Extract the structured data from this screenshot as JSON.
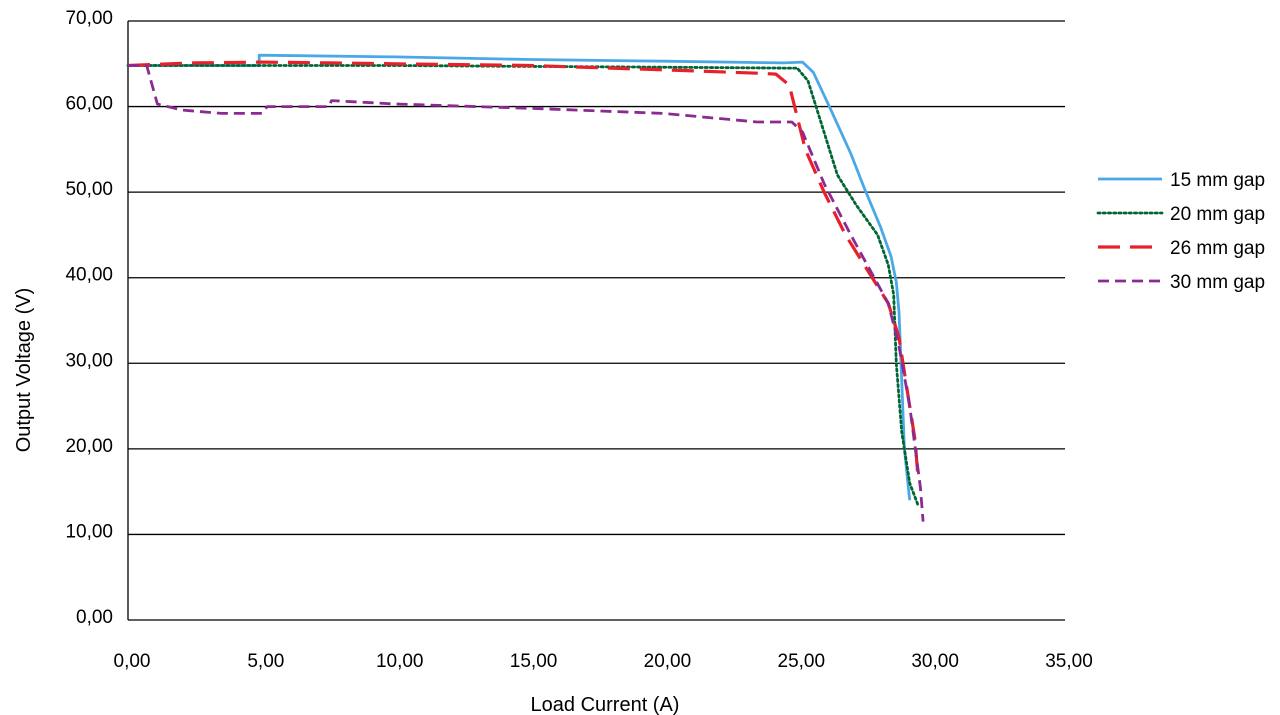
{
  "chart_data": {
    "type": "line",
    "title": "",
    "xlabel": "Load Current (A)",
    "ylabel": "Output Voltage (V)",
    "xlim": [
      0,
      35
    ],
    "ylim": [
      0,
      70
    ],
    "x_ticks": [
      "0,00",
      "5,00",
      "10,00",
      "15,00",
      "20,00",
      "25,00",
      "30,00",
      "35,00"
    ],
    "y_ticks": [
      "0,00",
      "10,00",
      "20,00",
      "30,00",
      "40,00",
      "50,00",
      "60,00",
      "70,00"
    ],
    "grid": "horizontal",
    "legend_position": "right",
    "series": [
      {
        "name": "15 mm gap",
        "color": "#4aa8e6",
        "style": "solid",
        "points": [
          [
            0,
            64.8
          ],
          [
            4.9,
            64.8
          ],
          [
            4.9,
            66.0
          ],
          [
            10,
            65.8
          ],
          [
            15,
            65.5
          ],
          [
            20,
            65.3
          ],
          [
            24.5,
            65.1
          ],
          [
            25.2,
            65.2
          ],
          [
            25.6,
            64.0
          ],
          [
            26.2,
            60.0
          ],
          [
            27,
            54.5
          ],
          [
            27.5,
            50.5
          ],
          [
            28.1,
            46.0
          ],
          [
            28.5,
            42.5
          ],
          [
            28.7,
            39.5
          ],
          [
            28.8,
            36.0
          ],
          [
            28.9,
            28.0
          ],
          [
            29.0,
            20.0
          ],
          [
            29.2,
            14.0
          ]
        ]
      },
      {
        "name": "20 mm gap",
        "color": "#006633",
        "style": "dotted",
        "points": [
          [
            0,
            64.8
          ],
          [
            5,
            64.8
          ],
          [
            10,
            64.8
          ],
          [
            15,
            64.7
          ],
          [
            20,
            64.6
          ],
          [
            24.5,
            64.5
          ],
          [
            25.0,
            64.5
          ],
          [
            25.4,
            63.0
          ],
          [
            25.9,
            58.0
          ],
          [
            26.5,
            52.0
          ],
          [
            27.2,
            48.5
          ],
          [
            28.0,
            45.0
          ],
          [
            28.4,
            41.5
          ],
          [
            28.6,
            38.0
          ],
          [
            28.7,
            30.0
          ],
          [
            28.9,
            22.0
          ],
          [
            29.2,
            16.0
          ],
          [
            29.5,
            13.5
          ]
        ]
      },
      {
        "name": "26 mm gap",
        "color": "#e8202a",
        "style": "dashed",
        "points": [
          [
            0,
            64.8
          ],
          [
            2.5,
            65.1
          ],
          [
            5,
            65.2
          ],
          [
            7.5,
            65.1
          ],
          [
            10,
            65.0
          ],
          [
            15,
            64.8
          ],
          [
            20,
            64.3
          ],
          [
            23.5,
            63.9
          ],
          [
            24.2,
            63.8
          ],
          [
            24.7,
            62.5
          ],
          [
            25.3,
            55.0
          ],
          [
            26,
            50.0
          ],
          [
            26.8,
            45.0
          ],
          [
            27.5,
            41.5
          ],
          [
            28.4,
            37.0
          ],
          [
            28.8,
            33.0
          ],
          [
            29.1,
            27.0
          ],
          [
            29.4,
            21.0
          ],
          [
            29.5,
            17.0
          ]
        ]
      },
      {
        "name": "30 mm gap",
        "color": "#8b2a92",
        "style": "dashed-short",
        "points": [
          [
            0,
            64.8
          ],
          [
            0.7,
            64.8
          ],
          [
            1.1,
            60.3
          ],
          [
            2,
            59.6
          ],
          [
            3.5,
            59.2
          ],
          [
            5,
            59.2
          ],
          [
            5.2,
            60.0
          ],
          [
            7.5,
            60.0
          ],
          [
            7.6,
            60.7
          ],
          [
            10,
            60.3
          ],
          [
            15,
            59.8
          ],
          [
            20,
            59.2
          ],
          [
            23.5,
            58.2
          ],
          [
            24.8,
            58.2
          ],
          [
            25.2,
            57.0
          ],
          [
            26,
            51.0
          ],
          [
            27,
            45.0
          ],
          [
            28.4,
            37.0
          ],
          [
            28.8,
            32.0
          ],
          [
            29.2,
            25.0
          ],
          [
            29.6,
            15.5
          ],
          [
            29.7,
            11.5
          ]
        ]
      }
    ]
  }
}
